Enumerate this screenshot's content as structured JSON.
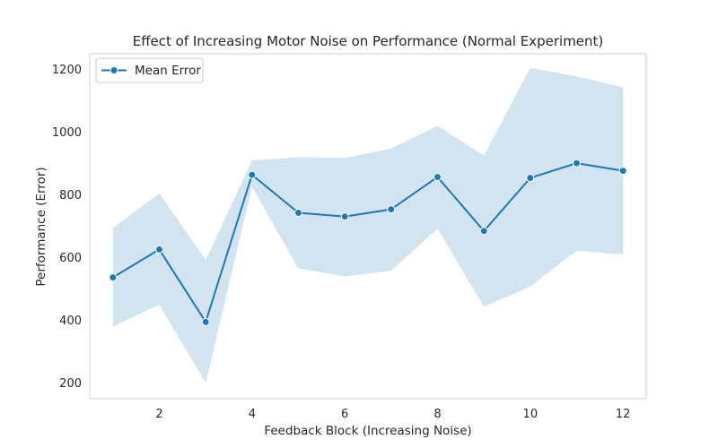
{
  "chart_data": {
    "type": "line",
    "title": "Effect of Increasing Motor Noise on Performance (Normal Experiment)",
    "xlabel": "Feedback Block (Increasing Noise)",
    "ylabel": "Performance (Error)",
    "xlim": [
      0.5,
      12.5
    ],
    "ylim": [
      150,
      1250
    ],
    "xticks": [
      2,
      4,
      6,
      8,
      10,
      12
    ],
    "yticks": [
      200,
      400,
      600,
      800,
      1000,
      1200
    ],
    "grid": false,
    "legend_position": "top-left",
    "series": [
      {
        "name": "Mean Error",
        "color": "#1f77b4",
        "band_color": "#1f77b4",
        "x": [
          1,
          2,
          3,
          4,
          5,
          6,
          7,
          8,
          9,
          10,
          11,
          12
        ],
        "y": [
          537,
          626,
          395,
          864,
          743,
          731,
          754,
          857,
          685,
          854,
          901,
          877
        ],
        "lower": [
          380,
          450,
          200,
          825,
          565,
          540,
          558,
          692,
          443,
          508,
          622,
          610
        ],
        "upper": [
          695,
          805,
          592,
          910,
          920,
          918,
          948,
          1020,
          925,
          1205,
          1178,
          1143
        ]
      }
    ]
  }
}
